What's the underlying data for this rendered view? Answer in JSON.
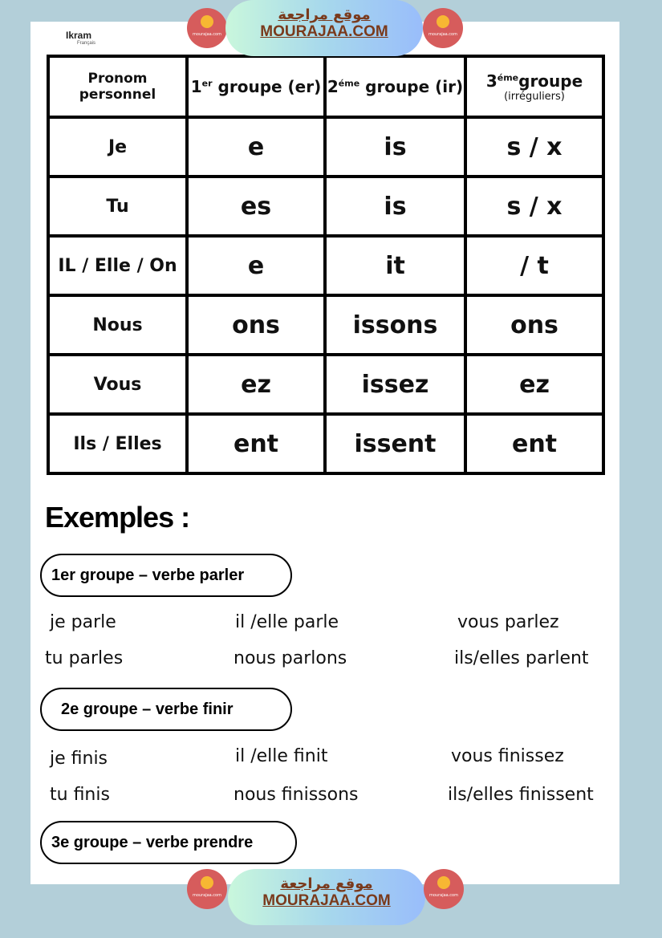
{
  "header": {
    "author": "Ikram",
    "subject": "Français"
  },
  "watermark": {
    "arabic": "موقع مراجعة",
    "latin": "MOURAJAA.COM",
    "logo_text": "mourajaa.com"
  },
  "table": {
    "headers": [
      {
        "label": "Pronom personnel"
      },
      {
        "num": "1",
        "sup": "er",
        "label": "groupe (er)"
      },
      {
        "num": "2",
        "sup": "éme",
        "label": "groupe (ir)"
      },
      {
        "num": "3",
        "sup": "éme",
        "label": "groupe",
        "sub": "(irréguliers)"
      }
    ],
    "rows": [
      [
        "Je",
        "e",
        "is",
        "s / x"
      ],
      [
        "Tu",
        "es",
        "is",
        "s / x"
      ],
      [
        "IL / Elle / On",
        "e",
        "it",
        "/ t"
      ],
      [
        "Nous",
        "ons",
        "issons",
        "ons"
      ],
      [
        "Vous",
        "ez",
        "issez",
        "ez"
      ],
      [
        "Ils / Elles",
        "ent",
        "issent",
        "ent"
      ]
    ]
  },
  "examples": {
    "title": "Exemples :",
    "groups": [
      {
        "label": "1er groupe – verbe parler",
        "forms": [
          "je parle",
          "il /elle parle",
          "vous parlez",
          "tu parles",
          "nous parlons",
          "ils/elles parlent"
        ]
      },
      {
        "label": "2e groupe – verbe finir",
        "forms": [
          "je finis",
          "il /elle finit",
          "vous finissez",
          "tu finis",
          "nous finissons",
          "ils/elles finissent"
        ]
      },
      {
        "label": "3e groupe – verbe prendre"
      }
    ]
  },
  "colors": {
    "background": "#b3cfd9",
    "watermark_text": "#7a3a1c",
    "logo": "#d65c5c"
  }
}
